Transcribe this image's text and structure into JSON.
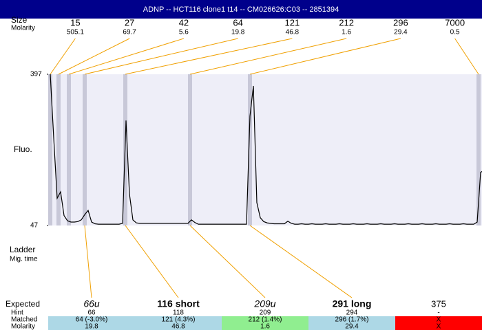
{
  "header": "ADNP -- HCT116 clone1 t14 -- CM026626:C03 -- 2851394",
  "ladder": {
    "size_label": "Size",
    "molarity_label": "Molarity",
    "sizes": [
      15,
      27,
      42,
      64,
      121,
      212,
      296,
      7000
    ],
    "molarities": [
      505.1,
      69.7,
      5.6,
      19.8,
      46.8,
      1.6,
      29.4,
      0.5
    ]
  },
  "ladder_label": "Ladder",
  "mig_time_label": "Mig. time",
  "chart_data": {
    "type": "line",
    "y_label": "Fluo.",
    "color": "#000000",
    "ylim": [
      47,
      397
    ],
    "yticks": [
      47,
      397
    ],
    "values": [
      397,
      250,
      110,
      125,
      70,
      58,
      55,
      55,
      56,
      60,
      72,
      82,
      55,
      51,
      50,
      50,
      50,
      50,
      50,
      50,
      50,
      52,
      290,
      120,
      60,
      53,
      52,
      52,
      52,
      52,
      52,
      52,
      52,
      52,
      52,
      52,
      52,
      52,
      52,
      52,
      52,
      60,
      54,
      50,
      50,
      50,
      50,
      50,
      50,
      50,
      50,
      50,
      50,
      50,
      50,
      50,
      50,
      50,
      300,
      370,
      100,
      65,
      56,
      53,
      52,
      51,
      51,
      51,
      51,
      57,
      52,
      50,
      50,
      51,
      50,
      50,
      51,
      50,
      50,
      50,
      51,
      50,
      50,
      50,
      51,
      50,
      50,
      50,
      51,
      50,
      50,
      50,
      51,
      50,
      50,
      50,
      51,
      50,
      50,
      50,
      51,
      50,
      50,
      50,
      51,
      50,
      50,
      50,
      51,
      50,
      50,
      50,
      51,
      50,
      50,
      50,
      51,
      50,
      50,
      50,
      51,
      50,
      50,
      50,
      55,
      170,
      175
    ]
  },
  "table": {
    "row_labels": [
      "Expected",
      "Hint",
      "Matched",
      "Molarity"
    ],
    "expected": [
      "66u",
      "116 short",
      "209u",
      "291 long",
      375
    ],
    "hint": [
      66,
      118,
      209,
      294,
      "-"
    ],
    "matched": [
      "64 (-3.0%)",
      "121 (4.3%)",
      "212 (1.4%)",
      "296 (1.7%)",
      "X"
    ],
    "molarity": [
      19.8,
      46.8,
      1.6,
      29.4,
      "X"
    ],
    "colors": [
      "#add8e6",
      "#add8e6",
      "#90ee90",
      "#add8e6",
      "#ff0000"
    ]
  }
}
